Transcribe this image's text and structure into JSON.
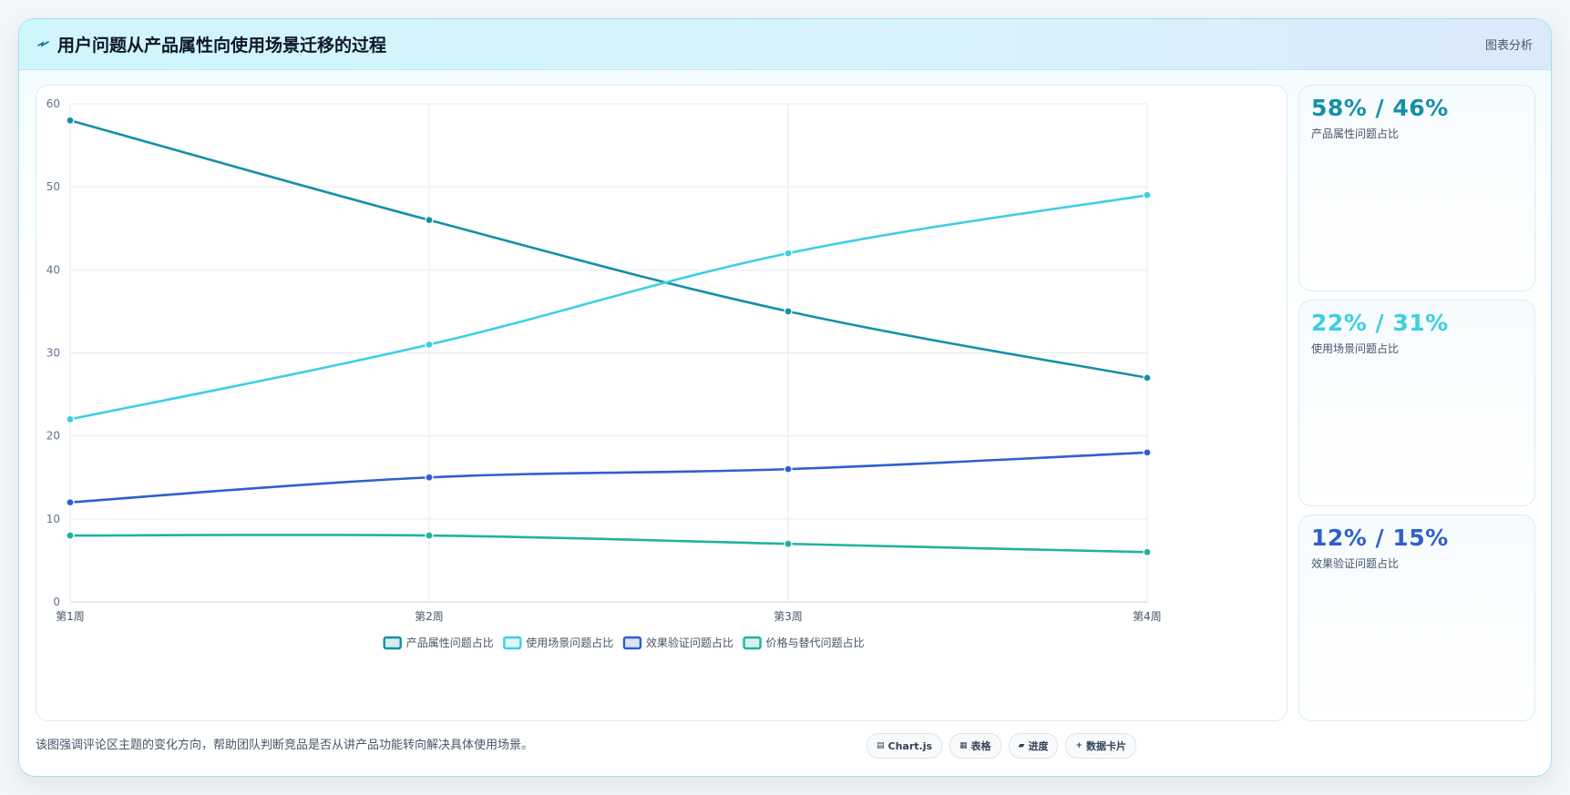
{
  "header": {
    "title": "用户问题从产品属性向使用场景迁移的过程",
    "tag": "图表分析"
  },
  "chart_data": {
    "type": "line",
    "categories": [
      "第1周",
      "第2周",
      "第3周",
      "第4周"
    ],
    "ylim": [
      0,
      60
    ],
    "yticks": [
      0,
      10,
      20,
      30,
      40,
      50,
      60
    ],
    "grid": true,
    "legend_position": "bottom",
    "series": [
      {
        "name": "产品属性问题占比",
        "values": [
          58,
          46,
          35,
          27
        ],
        "color": "#1590a8"
      },
      {
        "name": "使用场景问题占比",
        "values": [
          22,
          31,
          42,
          49
        ],
        "color": "#3ccfe3"
      },
      {
        "name": "效果验证问题占比",
        "values": [
          12,
          15,
          16,
          18
        ],
        "color": "#2f5fcf"
      },
      {
        "name": "价格与替代问题占比",
        "values": [
          8,
          8,
          7,
          6
        ],
        "color": "#1fb39e"
      }
    ]
  },
  "stats": [
    {
      "value": "58% / 46%",
      "label": "产品属性问题占比",
      "color": "#1590a8"
    },
    {
      "value": "22% / 31%",
      "label": "使用场景问题占比",
      "color": "#3ccfe3"
    },
    {
      "value": "12% / 15%",
      "label": "效果验证问题占比",
      "color": "#2f5fcf"
    }
  ],
  "footer": {
    "note": "该图强调评论区主题的变化方向，帮助团队判断竞品是否从讲产品功能转向解决具体使用场景。",
    "pills": [
      {
        "label": "Chart.js",
        "icon": "chart-icon"
      },
      {
        "label": "表格",
        "icon": "table-icon"
      },
      {
        "label": "进度",
        "icon": "progress-icon"
      },
      {
        "label": "数据卡片",
        "icon": "plus-icon"
      }
    ]
  }
}
